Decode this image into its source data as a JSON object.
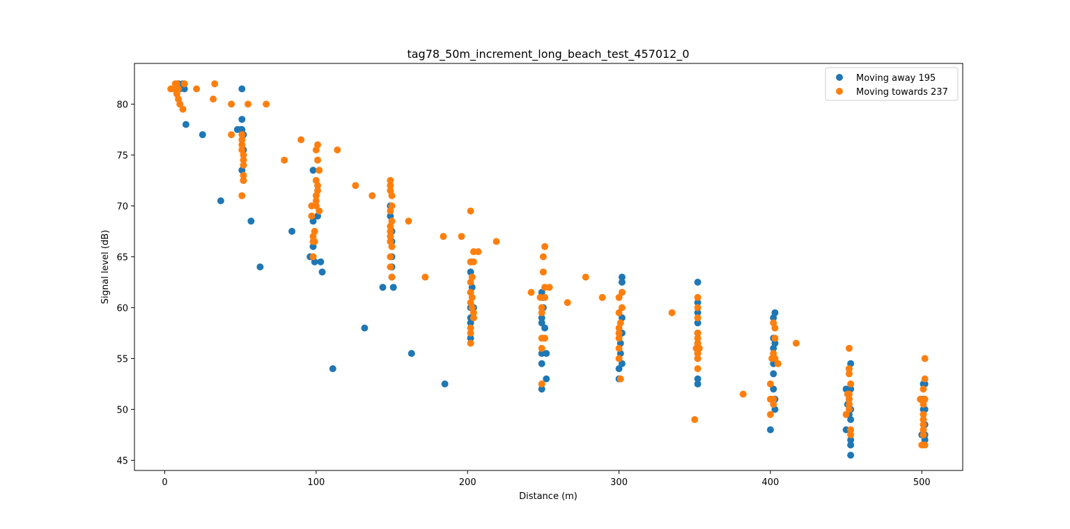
{
  "chart_data": {
    "type": "scatter",
    "title": "tag78_50m_increment_long_beach_test_457012_0",
    "xlabel": "Distance (m)",
    "ylabel": "Signal level (dB)",
    "xlim": [
      -20,
      527
    ],
    "ylim": [
      44,
      84
    ],
    "xticks": [
      0,
      100,
      200,
      300,
      400,
      500
    ],
    "yticks": [
      45,
      50,
      55,
      60,
      65,
      70,
      75,
      80
    ],
    "grid": false,
    "legend_position": "top-right",
    "series": [
      {
        "name": "Moving away 195",
        "color": "#1f77b4",
        "points": [
          [
            9,
            82
          ],
          [
            10,
            81.5
          ],
          [
            12,
            82
          ],
          [
            13,
            81.5
          ],
          [
            14,
            78
          ],
          [
            25,
            77
          ],
          [
            37,
            70.5
          ],
          [
            48,
            77.5
          ],
          [
            50,
            77.5
          ],
          [
            51,
            81.5
          ],
          [
            51,
            78.5
          ],
          [
            51,
            77.5
          ],
          [
            52,
            77
          ],
          [
            52,
            75.5
          ],
          [
            51,
            73.5
          ],
          [
            52,
            72.5
          ],
          [
            57,
            68.5
          ],
          [
            63,
            64
          ],
          [
            84,
            67.5
          ],
          [
            96,
            65
          ],
          [
            98,
            73.5
          ],
          [
            98,
            68.5
          ],
          [
            98,
            66
          ],
          [
            99,
            64.5
          ],
          [
            101,
            69
          ],
          [
            103,
            64.5
          ],
          [
            104,
            63.5
          ],
          [
            111,
            54
          ],
          [
            132,
            58
          ],
          [
            144,
            62
          ],
          [
            149,
            70
          ],
          [
            149,
            69
          ],
          [
            150,
            67.5
          ],
          [
            150,
            66.5
          ],
          [
            150,
            65
          ],
          [
            150,
            64
          ],
          [
            150,
            63
          ],
          [
            151,
            62
          ],
          [
            163,
            55.5
          ],
          [
            185,
            52.5
          ],
          [
            202,
            63.5
          ],
          [
            202,
            61.5
          ],
          [
            202,
            60
          ],
          [
            202,
            59
          ],
          [
            202,
            58.5
          ],
          [
            202,
            57
          ],
          [
            203,
            62
          ],
          [
            204,
            60
          ],
          [
            249,
            61.5
          ],
          [
            249,
            59
          ],
          [
            249,
            58.5
          ],
          [
            249,
            55.5
          ],
          [
            249,
            54.5
          ],
          [
            249,
            52
          ],
          [
            250,
            61
          ],
          [
            250,
            60
          ],
          [
            251,
            58
          ],
          [
            252,
            55.5
          ],
          [
            252,
            53
          ],
          [
            300,
            54
          ],
          [
            300,
            53
          ],
          [
            301,
            56.5
          ],
          [
            301,
            55.5
          ],
          [
            302,
            63
          ],
          [
            302,
            62.5
          ],
          [
            302,
            61.5
          ],
          [
            302,
            59
          ],
          [
            302,
            57.5
          ],
          [
            302,
            54.5
          ],
          [
            352,
            62.5
          ],
          [
            352,
            60.5
          ],
          [
            352,
            59.5
          ],
          [
            352,
            58.5
          ],
          [
            352,
            57.5
          ],
          [
            352,
            56.5
          ],
          [
            352,
            55.5
          ],
          [
            352,
            53
          ],
          [
            352,
            52.5
          ],
          [
            352,
            55
          ],
          [
            400,
            48
          ],
          [
            402,
            59
          ],
          [
            402,
            57
          ],
          [
            402,
            56
          ],
          [
            402,
            55
          ],
          [
            402,
            54.5
          ],
          [
            402,
            53.5
          ],
          [
            402,
            52
          ],
          [
            403,
            59.5
          ],
          [
            403,
            51
          ],
          [
            403,
            50
          ],
          [
            403,
            56.5
          ],
          [
            450,
            48
          ],
          [
            450,
            52
          ],
          [
            451,
            50.5
          ],
          [
            452,
            54
          ],
          [
            452,
            51
          ],
          [
            452,
            49.5
          ],
          [
            453,
            54.5
          ],
          [
            453,
            52
          ],
          [
            453,
            50
          ],
          [
            453,
            49
          ],
          [
            453,
            47
          ],
          [
            453,
            46.5
          ],
          [
            453,
            45.5
          ],
          [
            500,
            47.5
          ],
          [
            501,
            52.5
          ],
          [
            501,
            51
          ],
          [
            501,
            50
          ],
          [
            502,
            52.5
          ],
          [
            502,
            50
          ],
          [
            502,
            48.5
          ],
          [
            502,
            47.5
          ],
          [
            502,
            47
          ]
        ]
      },
      {
        "name": "Moving towards 237",
        "color": "#ff7f0e",
        "points": [
          [
            4,
            81.5
          ],
          [
            6,
            81.5
          ],
          [
            7,
            82
          ],
          [
            8,
            82
          ],
          [
            8,
            81
          ],
          [
            9,
            80.5
          ],
          [
            9,
            81.5
          ],
          [
            10,
            80
          ],
          [
            12,
            79.5
          ],
          [
            13,
            82
          ],
          [
            21,
            81.5
          ],
          [
            32,
            80.5
          ],
          [
            33,
            82
          ],
          [
            44,
            77
          ],
          [
            44,
            80
          ],
          [
            51,
            71
          ],
          [
            51,
            77
          ],
          [
            51,
            76.5
          ],
          [
            51,
            76
          ],
          [
            51,
            75.5
          ],
          [
            52,
            75
          ],
          [
            52,
            74.5
          ],
          [
            52,
            74
          ],
          [
            52,
            73
          ],
          [
            52,
            72.5
          ],
          [
            55,
            80
          ],
          [
            67,
            80
          ],
          [
            79,
            74.5
          ],
          [
            90,
            76.5
          ],
          [
            97,
            70
          ],
          [
            97,
            69
          ],
          [
            98,
            67
          ],
          [
            98,
            66.5
          ],
          [
            98,
            65
          ],
          [
            99,
            67.5
          ],
          [
            99,
            66.5
          ],
          [
            100,
            71
          ],
          [
            100,
            70.5
          ],
          [
            100,
            70
          ],
          [
            100,
            75.5
          ],
          [
            100,
            72.5
          ],
          [
            101,
            76
          ],
          [
            101,
            74.5
          ],
          [
            101,
            72
          ],
          [
            101,
            71.5
          ],
          [
            102,
            73.5
          ],
          [
            102,
            69.5
          ],
          [
            114,
            75.5
          ],
          [
            126,
            72
          ],
          [
            137,
            71
          ],
          [
            149,
            72.5
          ],
          [
            149,
            72
          ],
          [
            149,
            71.5
          ],
          [
            149,
            69.5
          ],
          [
            149,
            68
          ],
          [
            149,
            67.5
          ],
          [
            149,
            67
          ],
          [
            149,
            66.5
          ],
          [
            149,
            65
          ],
          [
            149,
            64
          ],
          [
            150,
            71
          ],
          [
            150,
            70
          ],
          [
            150,
            68.5
          ],
          [
            150,
            66
          ],
          [
            150,
            63
          ],
          [
            161,
            68.5
          ],
          [
            172,
            63
          ],
          [
            184,
            67
          ],
          [
            196,
            67
          ],
          [
            202,
            69.5
          ],
          [
            202,
            64.5
          ],
          [
            202,
            62.5
          ],
          [
            202,
            61.5
          ],
          [
            202,
            60.5
          ],
          [
            202,
            58
          ],
          [
            202,
            57.5
          ],
          [
            202,
            56.5
          ],
          [
            203,
            63
          ],
          [
            203,
            61
          ],
          [
            203,
            60
          ],
          [
            204,
            65.5
          ],
          [
            204,
            64.5
          ],
          [
            204,
            59.5
          ],
          [
            204,
            59
          ],
          [
            207,
            65.5
          ],
          [
            219,
            66.5
          ],
          [
            242,
            61.5
          ],
          [
            248,
            61
          ],
          [
            249,
            60
          ],
          [
            249,
            59.5
          ],
          [
            249,
            57
          ],
          [
            249,
            56
          ],
          [
            249,
            52.5
          ],
          [
            250,
            65
          ],
          [
            250,
            63.5
          ],
          [
            251,
            66
          ],
          [
            251,
            62
          ],
          [
            251,
            61
          ],
          [
            251,
            57
          ],
          [
            254,
            62
          ],
          [
            266,
            60.5
          ],
          [
            278,
            63
          ],
          [
            289,
            61
          ],
          [
            300,
            61
          ],
          [
            300,
            59.5
          ],
          [
            300,
            58
          ],
          [
            300,
            57.5
          ],
          [
            300,
            57
          ],
          [
            300,
            56
          ],
          [
            300,
            55
          ],
          [
            301,
            58.5
          ],
          [
            301,
            53
          ],
          [
            302,
            61.5
          ],
          [
            302,
            60
          ],
          [
            335,
            59.5
          ],
          [
            350,
            49
          ],
          [
            351,
            56
          ],
          [
            352,
            61
          ],
          [
            352,
            60
          ],
          [
            352,
            59
          ],
          [
            352,
            57.5
          ],
          [
            352,
            57
          ],
          [
            352,
            56.5
          ],
          [
            352,
            55.5
          ],
          [
            352,
            55
          ],
          [
            352,
            54
          ],
          [
            353,
            56
          ],
          [
            382,
            51.5
          ],
          [
            400,
            52.5
          ],
          [
            400,
            51
          ],
          [
            400,
            49.5
          ],
          [
            401,
            55
          ],
          [
            402,
            58.5
          ],
          [
            402,
            55.5
          ],
          [
            402,
            51
          ],
          [
            402,
            50.5
          ],
          [
            403,
            58
          ],
          [
            403,
            57
          ],
          [
            403,
            55
          ],
          [
            405,
            54.5
          ],
          [
            417,
            56.5
          ],
          [
            450,
            49.5
          ],
          [
            451,
            51.5
          ],
          [
            452,
            56
          ],
          [
            452,
            54
          ],
          [
            452,
            53.5
          ],
          [
            452,
            51.5
          ],
          [
            452,
            51
          ],
          [
            452,
            50.5
          ],
          [
            452,
            50
          ],
          [
            453,
            52.5
          ],
          [
            453,
            48
          ],
          [
            453,
            47.5
          ],
          [
            499,
            51
          ],
          [
            500,
            46.5
          ],
          [
            501,
            52
          ],
          [
            501,
            50.5
          ],
          [
            501,
            49.5
          ],
          [
            501,
            49
          ],
          [
            501,
            48.5
          ],
          [
            501,
            48
          ],
          [
            501,
            47.5
          ],
          [
            502,
            55
          ],
          [
            502,
            53
          ],
          [
            502,
            51
          ],
          [
            502,
            46.5
          ]
        ]
      }
    ]
  }
}
